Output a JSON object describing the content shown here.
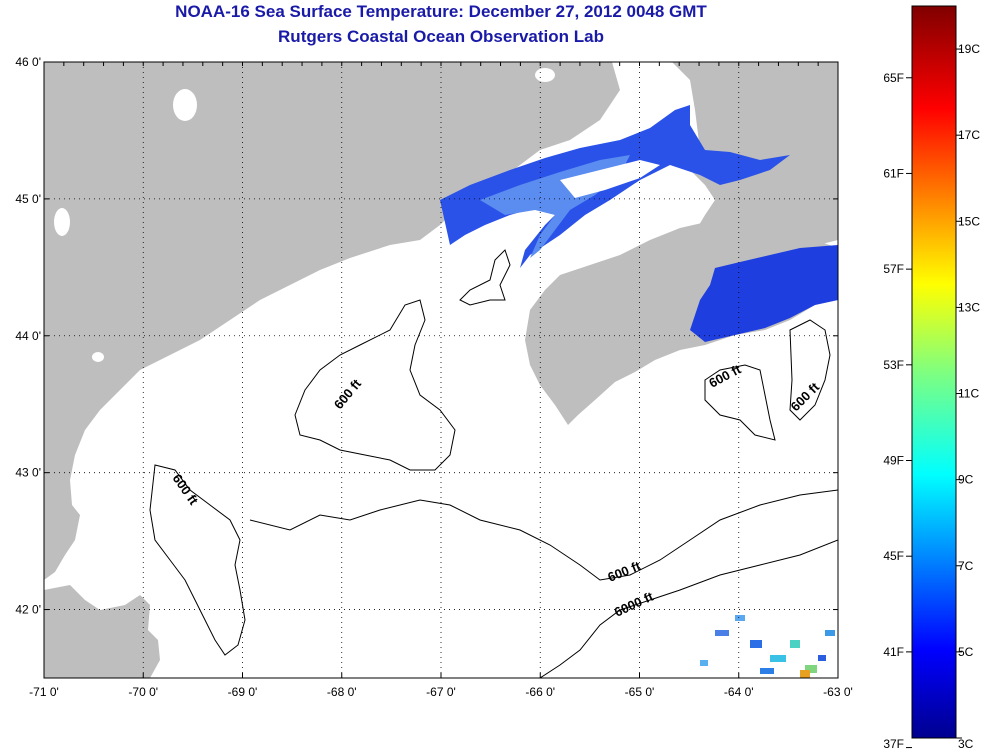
{
  "header": {
    "title": "NOAA-16 Sea Surface Temperature:  December 27, 2012 0048 GMT",
    "subtitle": "Rutgers Coastal Ocean Observation Lab"
  },
  "map": {
    "lon_range": [
      -71.0,
      -63.0
    ],
    "lat_range": [
      41.5,
      46.0
    ],
    "lon_ticks": [
      "-71 0'",
      "-70 0'",
      "-69 0'",
      "-68 0'",
      "-67 0'",
      "-66 0'",
      "-65 0'",
      "-64 0'",
      "-63 0'"
    ],
    "lat_ticks": [
      "46 0'",
      "45 0'",
      "44 0'",
      "43 0'",
      "42 0'"
    ],
    "contour_labels": [
      "600 ft",
      "600 ft",
      "600 ft",
      "600 ft",
      "600 ft",
      "6000 ft"
    ],
    "colors": {
      "land": "#bebebe",
      "ocean": "#ffffff",
      "grid": "#000000"
    }
  },
  "colorbar": {
    "celsius_labels": [
      "19C",
      "17C",
      "15C",
      "13C",
      "11C",
      "9C",
      "7C",
      "5C",
      "3C"
    ],
    "fahrenheit_labels": [
      "65F",
      "61F",
      "57F",
      "53F",
      "49F",
      "45F",
      "41F",
      "37F"
    ],
    "range_c": [
      3,
      20
    ]
  }
}
